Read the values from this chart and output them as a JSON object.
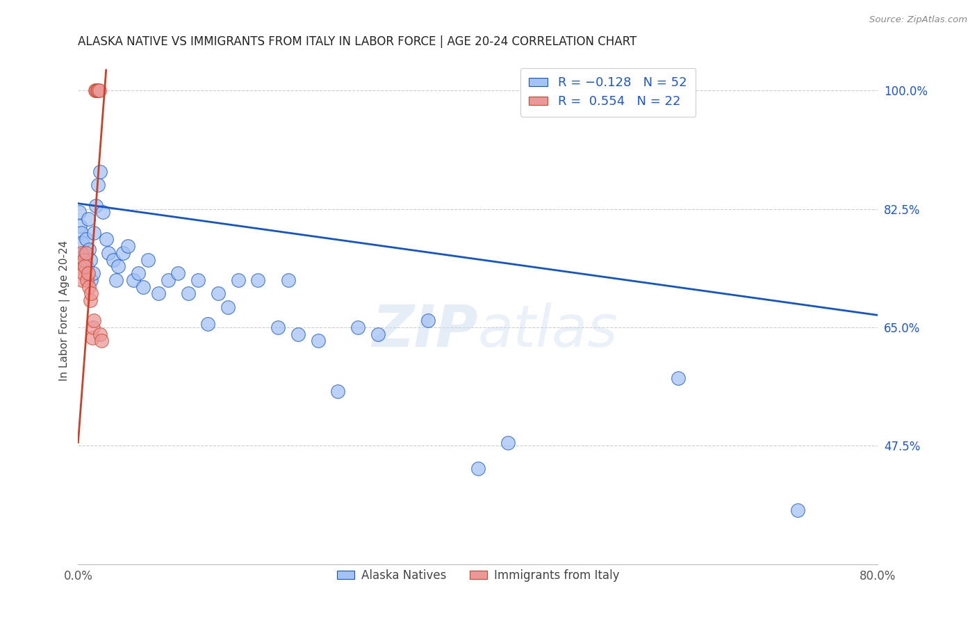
{
  "title": "ALASKA NATIVE VS IMMIGRANTS FROM ITALY IN LABOR FORCE | AGE 20-24 CORRELATION CHART",
  "source": "Source: ZipAtlas.com",
  "ylabel": "In Labor Force | Age 20-24",
  "xlim": [
    0.0,
    0.8
  ],
  "ylim": [
    0.3,
    1.05
  ],
  "xticks": [
    0.0,
    0.1,
    0.2,
    0.3,
    0.4,
    0.5,
    0.6,
    0.7,
    0.8
  ],
  "xticklabels": [
    "0.0%",
    "",
    "",
    "",
    "",
    "",
    "",
    "",
    "80.0%"
  ],
  "yticks_right": [
    1.0,
    0.825,
    0.65,
    0.475
  ],
  "yticklabels_right": [
    "100.0%",
    "82.5%",
    "65.0%",
    "47.5%"
  ],
  "watermark": "ZIPatlas",
  "blue_color": "#a4c2f4",
  "pink_color": "#ea9999",
  "trend_blue": "#1155cc",
  "trend_pink": "#cc4125",
  "blue_trend_x0": 0.0,
  "blue_trend_y0": 0.833,
  "blue_trend_x1": 0.8,
  "blue_trend_y1": 0.668,
  "pink_trend_x0": 0.0,
  "pink_trend_y0": 0.48,
  "pink_trend_x1": 0.028,
  "pink_trend_y1": 1.03,
  "alaska_x": [
    0.001,
    0.002,
    0.003,
    0.004,
    0.005,
    0.006,
    0.007,
    0.008,
    0.009,
    0.01,
    0.011,
    0.012,
    0.013,
    0.015,
    0.016,
    0.018,
    0.02,
    0.022,
    0.025,
    0.028,
    0.03,
    0.035,
    0.038,
    0.04,
    0.045,
    0.05,
    0.055,
    0.06,
    0.065,
    0.07,
    0.08,
    0.09,
    0.1,
    0.11,
    0.12,
    0.13,
    0.14,
    0.15,
    0.16,
    0.18,
    0.2,
    0.21,
    0.22,
    0.24,
    0.26,
    0.28,
    0.3,
    0.35,
    0.4,
    0.43,
    0.6,
    0.72
  ],
  "alaska_y": [
    0.82,
    0.8,
    0.79,
    0.775,
    0.75,
    0.74,
    0.76,
    0.78,
    0.74,
    0.81,
    0.765,
    0.75,
    0.72,
    0.73,
    0.79,
    0.83,
    0.86,
    0.88,
    0.82,
    0.78,
    0.76,
    0.75,
    0.72,
    0.74,
    0.76,
    0.77,
    0.72,
    0.73,
    0.71,
    0.75,
    0.7,
    0.72,
    0.73,
    0.7,
    0.72,
    0.655,
    0.7,
    0.68,
    0.72,
    0.72,
    0.65,
    0.72,
    0.64,
    0.63,
    0.555,
    0.65,
    0.64,
    0.66,
    0.442,
    0.48,
    0.575,
    0.38
  ],
  "italy_x": [
    0.002,
    0.003,
    0.004,
    0.005,
    0.006,
    0.007,
    0.008,
    0.009,
    0.01,
    0.011,
    0.012,
    0.013,
    0.014,
    0.015,
    0.016,
    0.017,
    0.018,
    0.019,
    0.02,
    0.021,
    0.022,
    0.023
  ],
  "italy_y": [
    0.74,
    0.76,
    0.72,
    0.73,
    0.75,
    0.74,
    0.76,
    0.72,
    0.73,
    0.71,
    0.69,
    0.7,
    0.635,
    0.65,
    0.66,
    1.0,
    1.0,
    1.0,
    1.0,
    1.0,
    0.64,
    0.63
  ]
}
